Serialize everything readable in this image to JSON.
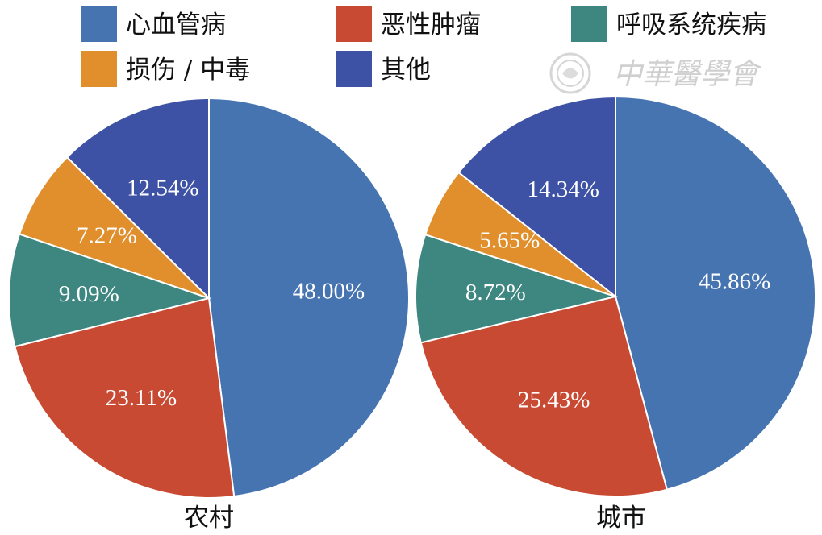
{
  "chart_data": {
    "type": "pie",
    "legend_position": "top",
    "colors": {
      "心血管病": "#4674b0",
      "恶性肿瘤": "#c84a33",
      "呼吸系统疾病": "#3e8780",
      "损伤 / 中毒": "#e08f2c",
      "其他": "#3d51a5"
    },
    "legend": [
      "心血管病",
      "恶性肿瘤",
      "呼吸系统疾病",
      "损伤 / 中毒",
      "其他"
    ],
    "charts": [
      {
        "title": "农村",
        "slices": [
          {
            "category": "心血管病",
            "value": 48.0,
            "label": "48.00%"
          },
          {
            "category": "恶性肿瘤",
            "value": 23.11,
            "label": "23.11%"
          },
          {
            "category": "呼吸系统疾病",
            "value": 9.09,
            "label": "9.09%"
          },
          {
            "category": "损伤 / 中毒",
            "value": 7.27,
            "label": "7.27%"
          },
          {
            "category": "其他",
            "value": 12.54,
            "label": "12.54%"
          }
        ]
      },
      {
        "title": "城市",
        "slices": [
          {
            "category": "心血管病",
            "value": 45.86,
            "label": "45.86%"
          },
          {
            "category": "恶性肿瘤",
            "value": 25.43,
            "label": "25.43%"
          },
          {
            "category": "呼吸系统疾病",
            "value": 8.72,
            "label": "8.72%"
          },
          {
            "category": "损伤 / 中毒",
            "value": 5.65,
            "label": "5.65%"
          },
          {
            "category": "其他",
            "value": 14.34,
            "label": "14.34%"
          }
        ]
      }
    ]
  },
  "watermark": {
    "text": "中華醫學會"
  }
}
